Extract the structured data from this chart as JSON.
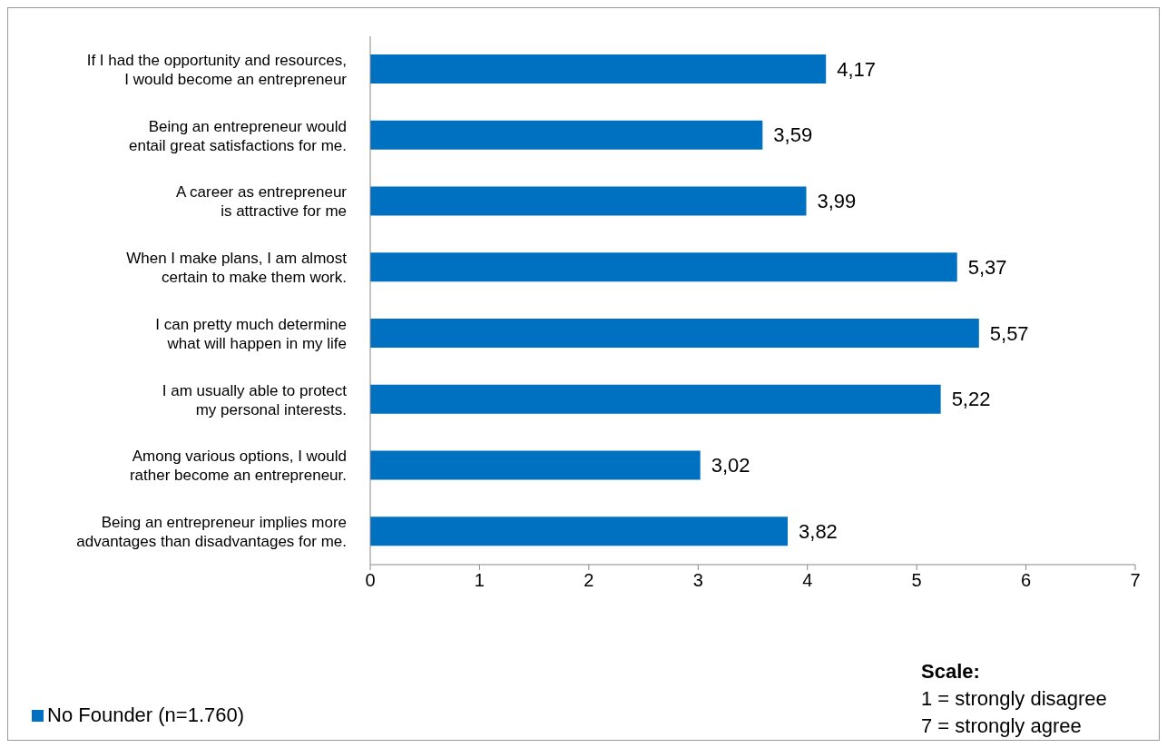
{
  "chart_data": {
    "type": "bar",
    "orientation": "horizontal",
    "categories": [
      "If I had the opportunity and resources,\nI would become an entrepreneur",
      "Being an entrepreneur would\nentail great satisfactions for me.",
      "A career as entrepreneur\nis attractive for me",
      "When I make plans, I am almost\ncertain to make them work.",
      "I can pretty much determine\nwhat will happen in my life",
      "I am usually able to protect\nmy personal interests.",
      "Among various options, I would\nrather become an entrepreneur.",
      "Being an entrepreneur implies more\nadvantages than disadvantages for me."
    ],
    "series": [
      {
        "name": "No Founder (n=1.760)",
        "color": "#0070c0",
        "values": [
          4.17,
          3.59,
          3.99,
          5.37,
          5.57,
          5.22,
          3.02,
          3.82
        ],
        "value_labels": [
          "4,17",
          "3,59",
          "3,99",
          "5,37",
          "5,57",
          "5,22",
          "3,02",
          "3,82"
        ]
      }
    ],
    "xlim": [
      0,
      7
    ],
    "xticks": [
      0,
      1,
      2,
      3,
      4,
      5,
      6,
      7
    ],
    "legend": "bottom left",
    "annotations": [
      "Scale:",
      "1 = strongly disagree",
      "7 = strongly agree"
    ]
  }
}
